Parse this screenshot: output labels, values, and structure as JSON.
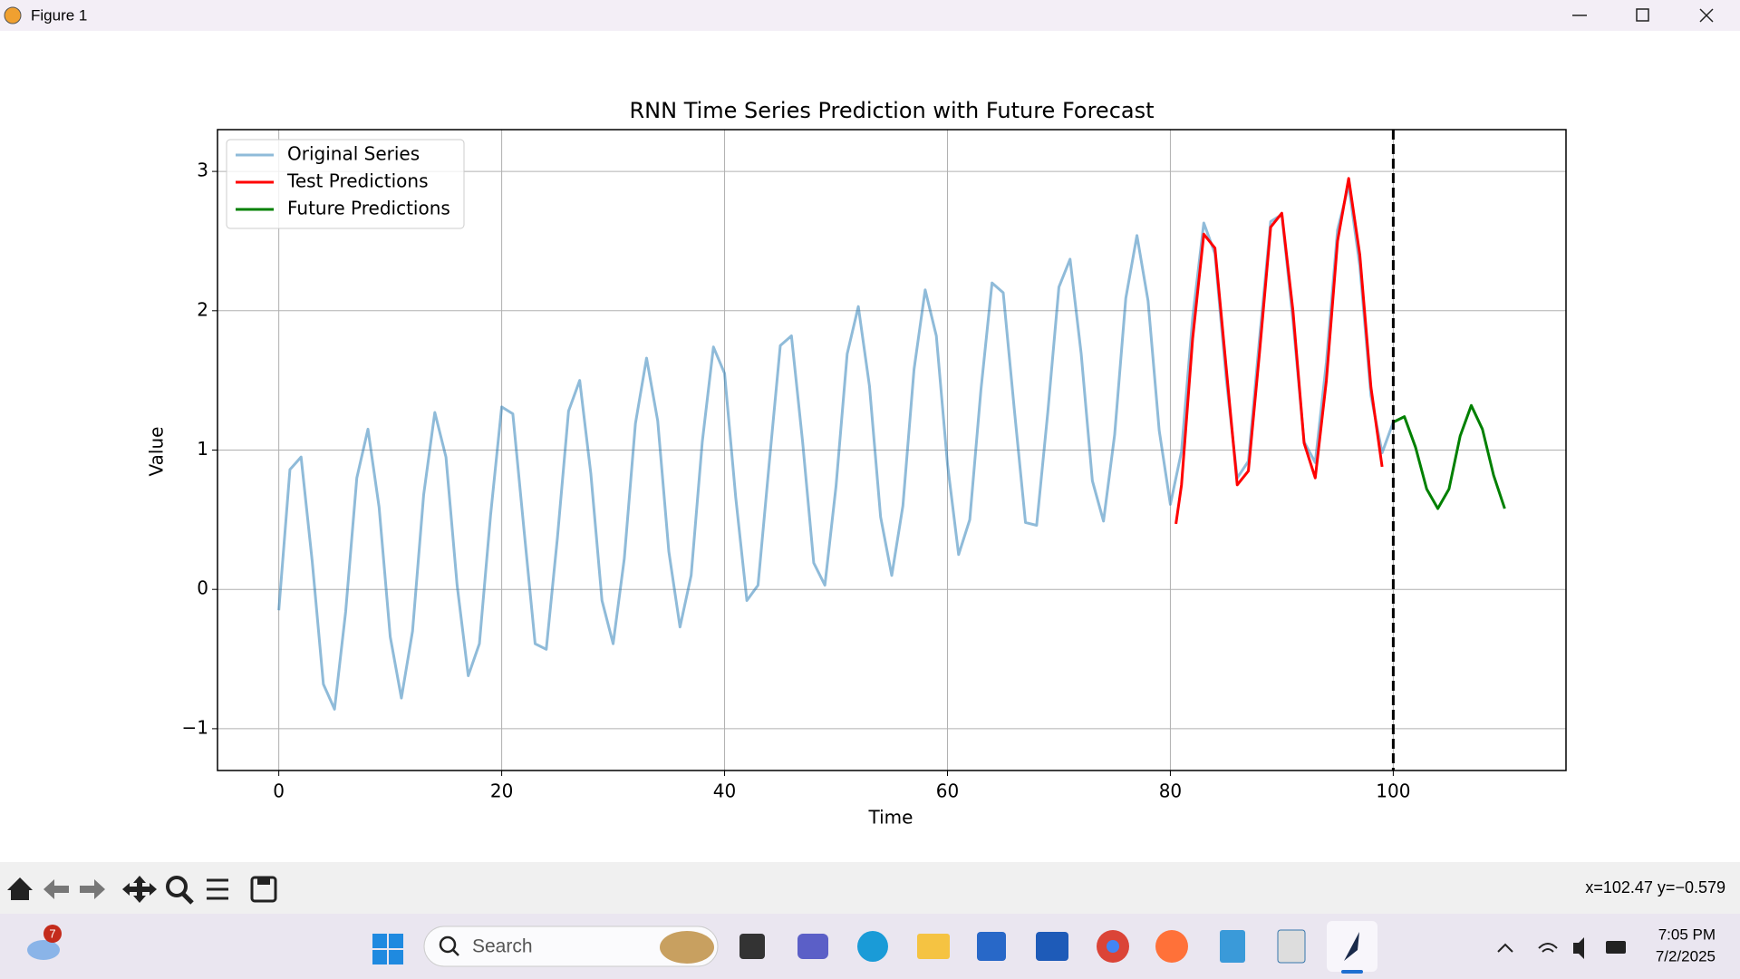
{
  "window": {
    "title": "Figure 1"
  },
  "chart_data": {
    "type": "line",
    "title": "RNN Time Series Prediction with Future Forecast",
    "x_label": "Time",
    "y_label": "Value",
    "xlim": [
      -5.5,
      115.5
    ],
    "ylim": [
      -1.3,
      3.3
    ],
    "xticks": [
      0,
      20,
      40,
      60,
      80,
      100
    ],
    "yticks": [
      {
        "value": -1,
        "label": "−1"
      },
      0,
      1,
      2,
      3
    ],
    "grid": true,
    "legend": "upper left",
    "vline": {
      "x": 100,
      "color": "black",
      "style": "dashed"
    },
    "series": [
      {
        "name": "Original Series",
        "color": "#1f77b4",
        "alpha": 0.5,
        "x": [
          0,
          1,
          2,
          3,
          4,
          5,
          6,
          7,
          8,
          9,
          10,
          11,
          12,
          13,
          14,
          15,
          16,
          17,
          18,
          19,
          20,
          21,
          22,
          23,
          24,
          25,
          26,
          27,
          28,
          29,
          30,
          31,
          32,
          33,
          34,
          35,
          36,
          37,
          38,
          39,
          40,
          41,
          42,
          43,
          44,
          45,
          46,
          47,
          48,
          49,
          50,
          51,
          52,
          53,
          54,
          55,
          56,
          57,
          58,
          59,
          60,
          61,
          62,
          63,
          64,
          65,
          66,
          67,
          68,
          69,
          70,
          71,
          72,
          73,
          74,
          75,
          76,
          77,
          78,
          79,
          80,
          81,
          82,
          83,
          84,
          85,
          86,
          87,
          88,
          89,
          90,
          91,
          92,
          93,
          94,
          95,
          96,
          97,
          98,
          99,
          100
        ],
        "values": [
          -0.15,
          0.86,
          0.95,
          0.2,
          -0.68,
          -0.86,
          -0.16,
          0.8,
          1.15,
          0.59,
          -0.34,
          -0.78,
          -0.3,
          0.68,
          1.27,
          0.95,
          0.03,
          -0.62,
          -0.39,
          0.53,
          1.31,
          1.26,
          0.43,
          -0.39,
          -0.43,
          0.37,
          1.28,
          1.5,
          0.83,
          -0.08,
          -0.39,
          0.22,
          1.19,
          1.66,
          1.21,
          0.27,
          -0.27,
          0.1,
          1.06,
          1.74,
          1.55,
          0.66,
          -0.08,
          0.03,
          0.9,
          1.75,
          1.82,
          1.06,
          0.19,
          0.03,
          0.74,
          1.69,
          2.03,
          1.46,
          0.52,
          0.1,
          0.6,
          1.58,
          2.15,
          1.82,
          0.9,
          0.25,
          0.5,
          1.43,
          2.2,
          2.13,
          1.29,
          0.48,
          0.46,
          1.27,
          2.17,
          2.37,
          1.69,
          0.78,
          0.49,
          1.11,
          2.09,
          2.54,
          2.07,
          1.14,
          0.61,
          0.99,
          1.95,
          2.63,
          2.41,
          1.52,
          0.8,
          0.92,
          1.8,
          2.64,
          2.69,
          1.93,
          1.06,
          0.91,
          1.63,
          2.58,
          2.9,
          2.32,
          1.39,
          0.98,
          1.2
        ]
      },
      {
        "name": "Test Predictions",
        "color": "red",
        "x": [
          80.5,
          81,
          82,
          83,
          84,
          85,
          86,
          87,
          88,
          89,
          90,
          91,
          92,
          93,
          94,
          95,
          96,
          97,
          98,
          99
        ],
        "values": [
          0.47,
          0.75,
          1.8,
          2.55,
          2.45,
          1.6,
          0.75,
          0.85,
          1.7,
          2.6,
          2.7,
          2.0,
          1.05,
          0.8,
          1.5,
          2.5,
          2.95,
          2.4,
          1.45,
          0.88
        ]
      },
      {
        "name": "Future Predictions",
        "color": "green",
        "x": [
          100,
          101,
          102,
          103,
          104,
          105,
          106,
          107,
          108,
          109,
          110
        ],
        "values": [
          1.2,
          1.24,
          1.02,
          0.72,
          0.58,
          0.72,
          1.1,
          1.32,
          1.15,
          0.82,
          0.58
        ]
      }
    ]
  },
  "toolbar": {
    "status": "x=102.47 y=−0.579"
  },
  "taskbar": {
    "weather_badge": "7",
    "search": "Search",
    "time": "7:05 PM",
    "date": "7/2/2025"
  }
}
